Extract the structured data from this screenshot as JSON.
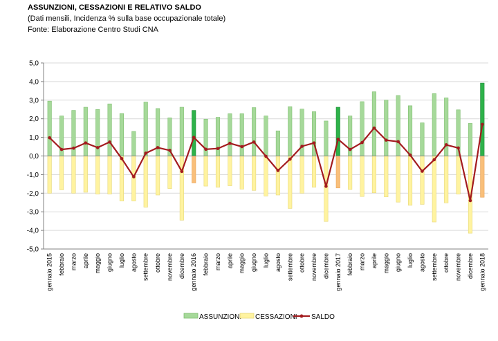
{
  "title": "ASSUNZIONI, CESSAZIONI E  RELATIVO SALDO",
  "subtitle": "(Dati mensili, Incidenza % sulla base occupazionale totale)",
  "source": "Fonte: Elaborazione Centro Studi CNA",
  "chart_data": {
    "type": "bar",
    "categories": [
      "gennaio 2015",
      "febbraio",
      "marzo",
      "aprile",
      "maggio",
      "giugno",
      "luglio",
      "agosto",
      "settembre",
      "ottobre",
      "novembre",
      "dicembre",
      "gennaio 2016",
      "febbraio",
      "marzo",
      "aprile",
      "maggio",
      "giugno",
      "luglio",
      "agosto",
      "settembre",
      "ottobre",
      "novembre",
      "dicembre",
      "gennaio 2017",
      "febbraio",
      "marzo",
      "aprile",
      "maggio",
      "giugno",
      "luglio",
      "agosto",
      "settembre",
      "ottobre",
      "novembre",
      "dicembre",
      "gennaio 2018"
    ],
    "series": [
      {
        "name": "ASSUNZIONI",
        "type": "bar",
        "values": [
          2.95,
          2.15,
          2.45,
          2.62,
          2.5,
          2.8,
          2.28,
          1.32,
          2.9,
          2.55,
          2.05,
          2.62,
          2.45,
          1.98,
          2.08,
          2.27,
          2.27,
          2.6,
          2.15,
          1.35,
          2.65,
          2.52,
          2.38,
          1.88,
          2.62,
          2.15,
          2.92,
          3.45,
          3.0,
          3.25,
          2.7,
          1.78,
          3.35,
          3.12,
          2.48,
          1.75,
          3.92
        ]
      },
      {
        "name": "CESSAZIONI",
        "type": "bar",
        "values": [
          -2.0,
          -1.82,
          -2.0,
          -1.95,
          -2.05,
          -2.05,
          -2.42,
          -2.42,
          -2.75,
          -2.1,
          -1.75,
          -3.45,
          -1.45,
          -1.62,
          -1.68,
          -1.6,
          -1.78,
          -1.85,
          -2.15,
          -2.1,
          -2.82,
          -2.0,
          -1.68,
          -3.52,
          -1.72,
          -1.8,
          -2.18,
          -1.98,
          -2.2,
          -2.48,
          -2.65,
          -2.6,
          -3.55,
          -2.52,
          -2.05,
          -4.15,
          -2.22
        ]
      },
      {
        "name": "SALDO",
        "type": "line",
        "values": [
          0.98,
          0.35,
          0.42,
          0.7,
          0.45,
          0.75,
          -0.14,
          -1.12,
          0.15,
          0.45,
          0.3,
          -0.83,
          1.0,
          0.36,
          0.4,
          0.68,
          0.5,
          0.75,
          -0.02,
          -0.78,
          -0.17,
          0.52,
          0.7,
          -1.63,
          0.9,
          0.35,
          0.72,
          1.5,
          0.85,
          0.77,
          0.05,
          -0.82,
          -0.2,
          0.6,
          0.43,
          -2.4,
          1.7
        ]
      }
    ],
    "highlight_indices": [
      12,
      24,
      36
    ],
    "ylim": [
      -5.0,
      5.0
    ],
    "yticks": [
      "5,0",
      "4,0",
      "3,0",
      "2,0",
      "1,0",
      "0,0",
      "-1,0",
      "-2,0",
      "-3,0",
      "-4,0",
      "-5,0"
    ],
    "grid": true,
    "legend_position": "bottom",
    "colors": {
      "assunzioni": "#a6d99a",
      "assunzioni_highlight": "#2eb24a",
      "cessazioni": "#fff3a0",
      "cessazioni_highlight": "#f9bf7a",
      "saldo": "#a31b1f",
      "grid": "#d9d9d9"
    }
  }
}
